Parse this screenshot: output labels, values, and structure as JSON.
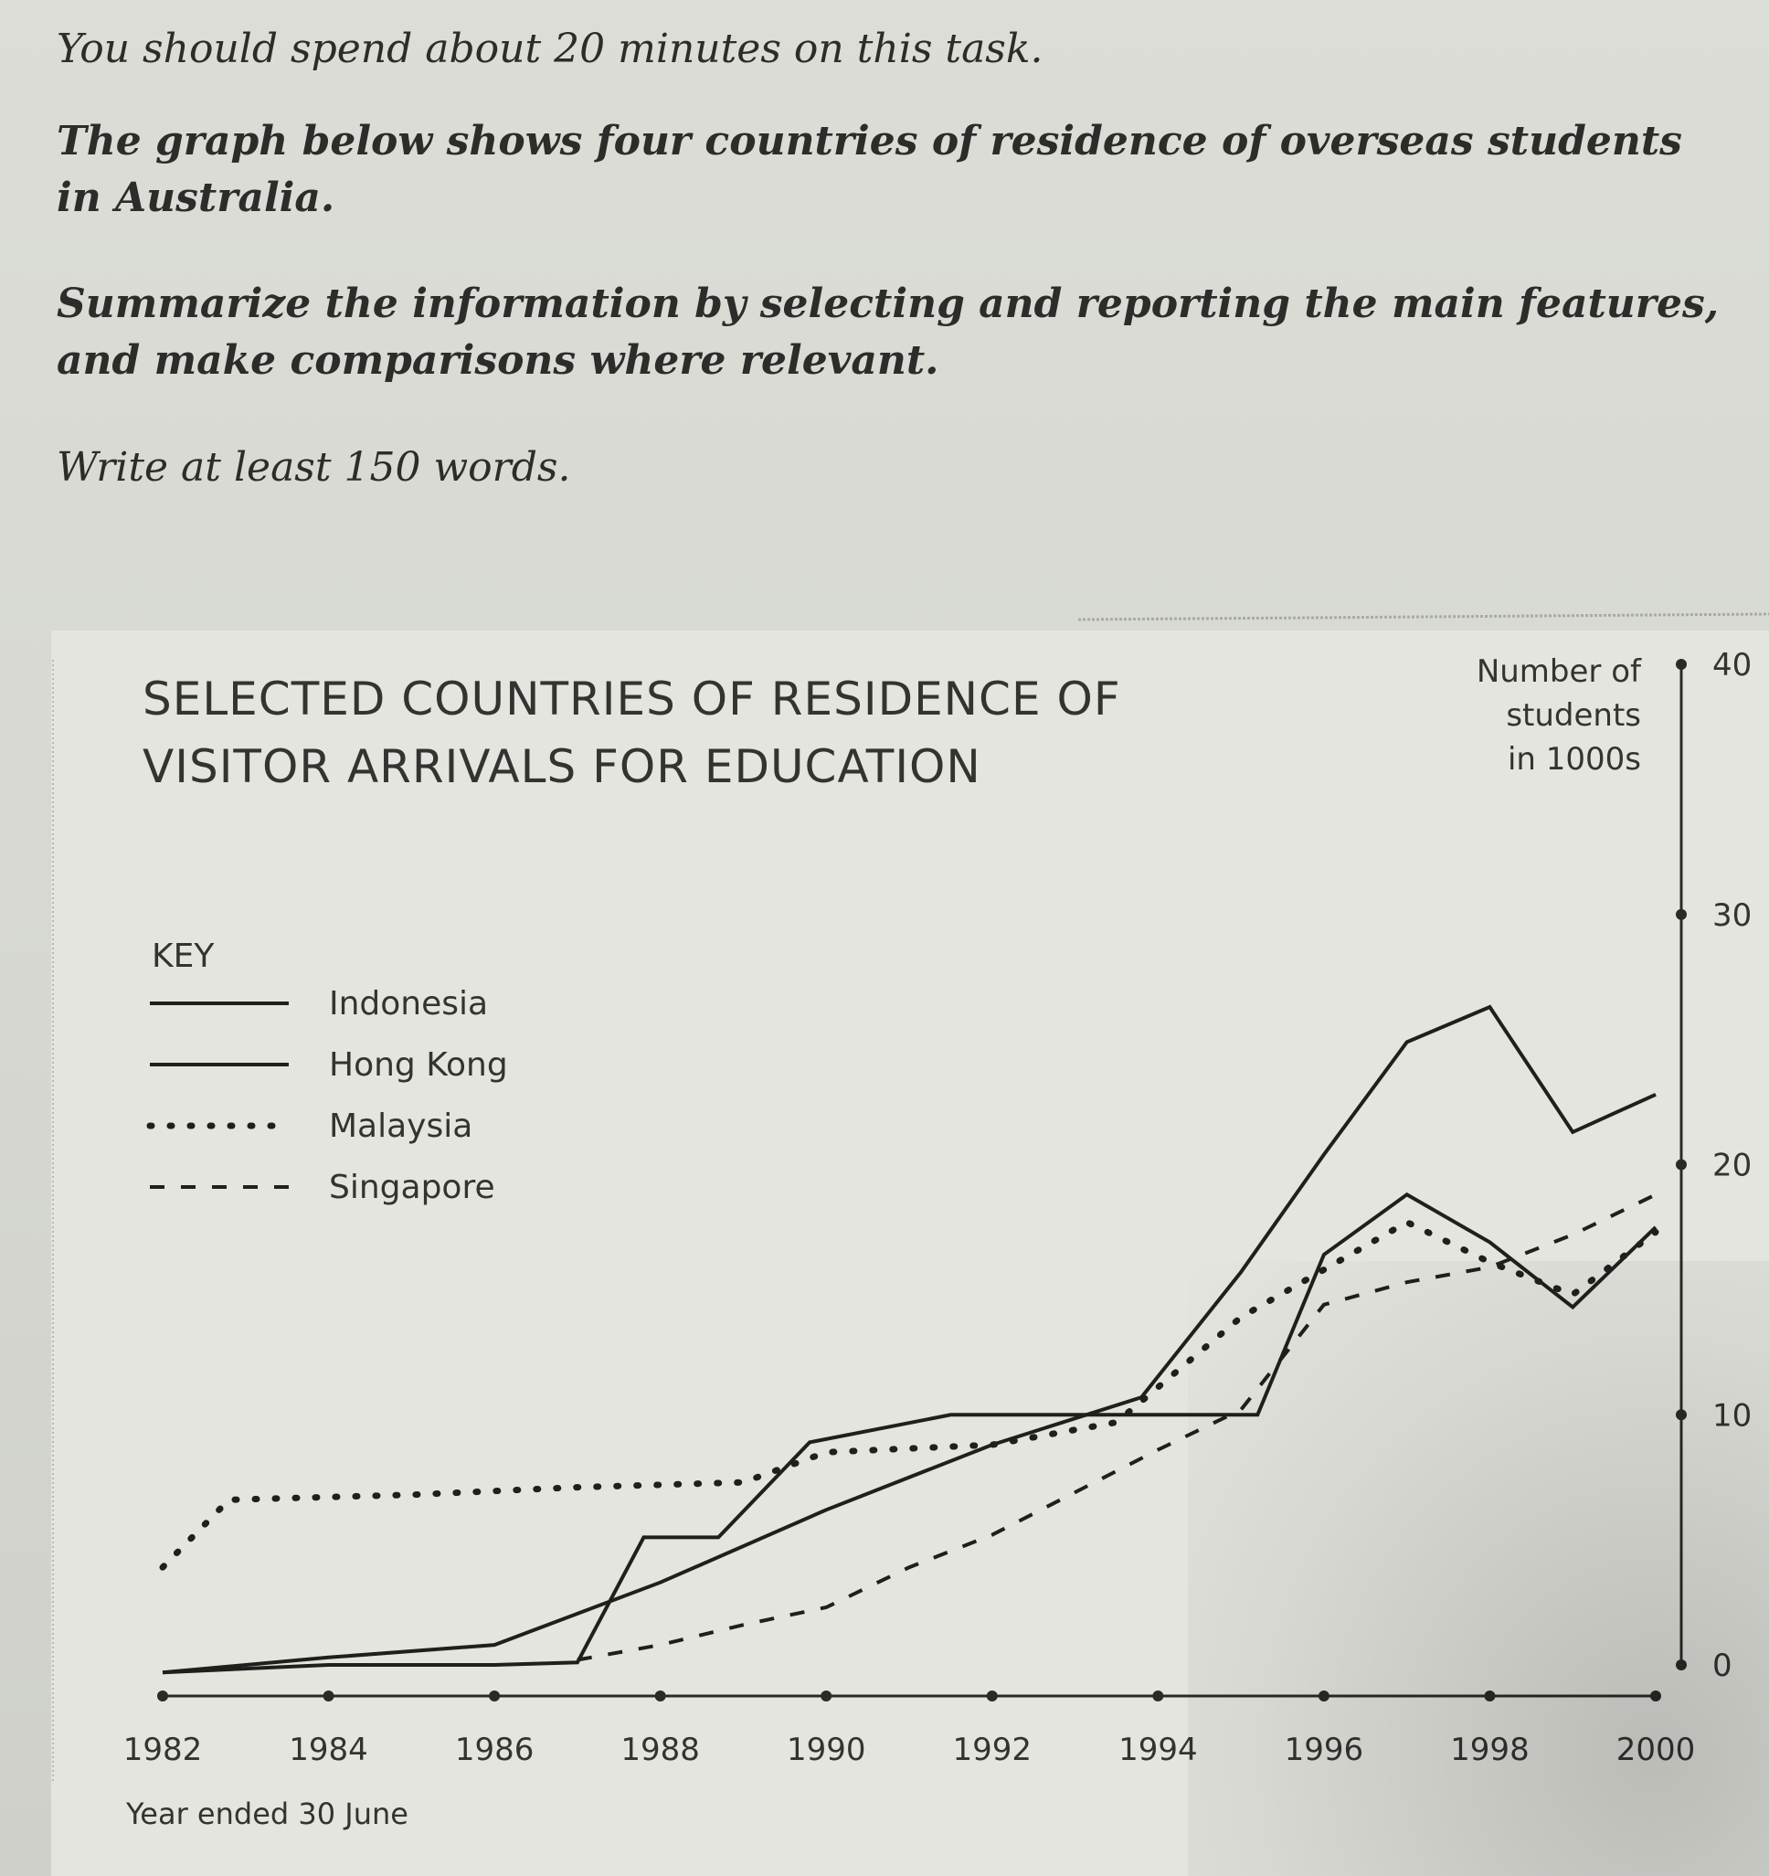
{
  "task": {
    "time": "You should spend about 20 minutes on this task.",
    "description": "The graph below shows four countries of residence of overseas students in Australia.",
    "instruction": "Summarize the information by selecting and reporting the main features, and make comparisons where relevant.",
    "word_count": "Write at least 150 words."
  },
  "chart_data": {
    "type": "line",
    "title": "SELECTED COUNTRIES OF RESIDENCE OF VISITOR ARRIVALS FOR EDUCATION",
    "title_lines": [
      "SELECTED COUNTRIES OF RESIDENCE OF",
      "VISITOR ARRIVALS FOR EDUCATION"
    ],
    "ylabel_lines": [
      "Number of",
      "students",
      "in 1000s"
    ],
    "xlabel": "Year ended 30 June",
    "key_label": "KEY",
    "x_ticks": [
      1982,
      1984,
      1986,
      1988,
      1990,
      1992,
      1994,
      1996,
      1998,
      2000
    ],
    "y_ticks": [
      0,
      10,
      20,
      30,
      40
    ],
    "xlim": [
      1982,
      2000
    ],
    "ylim": [
      0,
      40
    ],
    "y_axis_side": "right",
    "grid": false,
    "legend_position": "left",
    "series": [
      {
        "name": "Indonesia",
        "style": "solid",
        "points": [
          [
            1982,
            -0.3
          ],
          [
            1984,
            0.3
          ],
          [
            1986,
            0.8
          ],
          [
            1988,
            3.3
          ],
          [
            1990,
            6.2
          ],
          [
            1992,
            8.8
          ],
          [
            1993.8,
            10.7
          ],
          [
            1995,
            15.7
          ],
          [
            1996,
            20.4
          ],
          [
            1997,
            24.9
          ],
          [
            1998,
            26.3
          ],
          [
            1999,
            21.3
          ],
          [
            2000,
            22.8
          ]
        ]
      },
      {
        "name": "Hong Kong",
        "style": "solid",
        "points": [
          [
            1982,
            -0.3
          ],
          [
            1984,
            0
          ],
          [
            1986,
            0
          ],
          [
            1987,
            0.1
          ],
          [
            1987.8,
            5.1
          ],
          [
            1988.7,
            5.1
          ],
          [
            1989.8,
            8.9
          ],
          [
            1991.5,
            10
          ],
          [
            1993.5,
            10
          ],
          [
            1994.5,
            10
          ],
          [
            1995.2,
            10
          ],
          [
            1996,
            16.4
          ],
          [
            1997,
            18.8
          ],
          [
            1998,
            16.9
          ],
          [
            1999,
            14.3
          ],
          [
            2000,
            17.5
          ]
        ]
      },
      {
        "name": "Malaysia",
        "style": "dotted",
        "points": [
          [
            1982,
            3.9
          ],
          [
            1982.8,
            6.6
          ],
          [
            1985,
            6.8
          ],
          [
            1987,
            7.1
          ],
          [
            1989,
            7.3
          ],
          [
            1990,
            8.5
          ],
          [
            1992,
            8.8
          ],
          [
            1993.5,
            9.7
          ],
          [
            1995,
            13.9
          ],
          [
            1996,
            15.8
          ],
          [
            1997,
            17.7
          ],
          [
            1998,
            16.1
          ],
          [
            1999,
            14.8
          ],
          [
            2000,
            17.3
          ]
        ]
      },
      {
        "name": "Singapore",
        "style": "dashed",
        "points": [
          [
            1987,
            0.2
          ],
          [
            1988,
            0.8
          ],
          [
            1989,
            1.6
          ],
          [
            1990,
            2.3
          ],
          [
            1991,
            3.9
          ],
          [
            1992,
            5.2
          ],
          [
            1993,
            6.9
          ],
          [
            1994,
            8.6
          ],
          [
            1995,
            10.2
          ],
          [
            1996,
            14.4
          ],
          [
            1997,
            15.3
          ],
          [
            1998,
            15.9
          ],
          [
            1999,
            17.2
          ],
          [
            2000,
            18.8
          ]
        ]
      }
    ]
  }
}
